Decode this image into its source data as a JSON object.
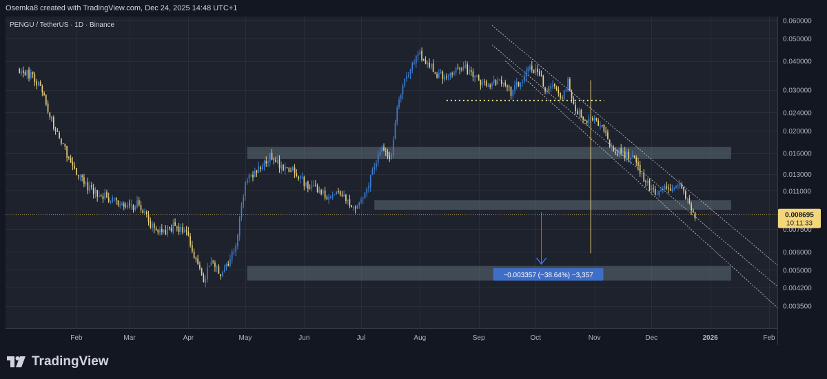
{
  "header": {
    "attribution": "Osemka8 created with TradingView.com, Dec 24, 2025 14:48 UTC+1"
  },
  "footer": {
    "brand": "TradingView",
    "logo_icon": "tradingview-logo-icon"
  },
  "chart_data": {
    "type": "candlestick",
    "title": "PENGU / TetherUS · 1D · Binance",
    "x_axis": {
      "labels": [
        "Feb",
        "Mar",
        "Apr",
        "May",
        "Jun",
        "Jul",
        "Aug",
        "Sep",
        "Oct",
        "Nov",
        "Dec",
        "2026",
        "Feb"
      ]
    },
    "y_axis": {
      "scale": "log",
      "labels": [
        "0.060000",
        "0.050000",
        "0.040000",
        "0.030000",
        "0.024000",
        "0.020000",
        "0.016000",
        "0.013000",
        "0.011000",
        "0.007500",
        "0.006000",
        "0.005000",
        "0.004200",
        "0.003500"
      ]
    },
    "last_price": {
      "value": "0.008695",
      "countdown": "10:11:33"
    },
    "measure_label": "−0.003357 (−38.64%) −3,357",
    "colors": {
      "up": "#3d7fd4",
      "down": "#e8d07a",
      "background": "#1e222d",
      "grid": "#2a2e39",
      "zone": "#5d6b77",
      "text": "#b2b5be",
      "price_tag": "#f5d77b",
      "measure": "#3e6ec8"
    },
    "price_path": [
      [
        "2025-01-02",
        0.037
      ],
      [
        "2025-01-08",
        0.0345
      ],
      [
        "2025-01-14",
        0.03
      ],
      [
        "2025-01-20",
        0.021
      ],
      [
        "2025-01-26",
        0.0165
      ],
      [
        "2025-02-01",
        0.013
      ],
      [
        "2025-02-08",
        0.0112
      ],
      [
        "2025-02-15",
        0.0105
      ],
      [
        "2025-02-22",
        0.0098
      ],
      [
        "2025-03-01",
        0.0092
      ],
      [
        "2025-03-06",
        0.0098
      ],
      [
        "2025-03-12",
        0.0078
      ],
      [
        "2025-03-18",
        0.0072
      ],
      [
        "2025-03-24",
        0.0077
      ],
      [
        "2025-03-31",
        0.0074
      ],
      [
        "2025-04-06",
        0.0051
      ],
      [
        "2025-04-09",
        0.0045
      ],
      [
        "2025-04-13",
        0.0055
      ],
      [
        "2025-04-18",
        0.0049
      ],
      [
        "2025-04-22",
        0.0052
      ],
      [
        "2025-04-26",
        0.0065
      ],
      [
        "2025-05-01",
        0.012
      ],
      [
        "2025-05-05",
        0.0128
      ],
      [
        "2025-05-10",
        0.0145
      ],
      [
        "2025-05-14",
        0.0155
      ],
      [
        "2025-05-20",
        0.014
      ],
      [
        "2025-05-27",
        0.0135
      ],
      [
        "2025-06-01",
        0.012
      ],
      [
        "2025-06-08",
        0.011
      ],
      [
        "2025-06-15",
        0.0102
      ],
      [
        "2025-06-20",
        0.011
      ],
      [
        "2025-06-25",
        0.0096
      ],
      [
        "2025-06-28",
        0.0095
      ],
      [
        "2025-07-03",
        0.0105
      ],
      [
        "2025-07-08",
        0.014
      ],
      [
        "2025-07-12",
        0.0165
      ],
      [
        "2025-07-17",
        0.0155
      ],
      [
        "2025-07-20",
        0.026
      ],
      [
        "2025-07-23",
        0.031
      ],
      [
        "2025-07-27",
        0.038
      ],
      [
        "2025-07-31",
        0.043
      ],
      [
        "2025-08-04",
        0.04
      ],
      [
        "2025-08-10",
        0.035
      ],
      [
        "2025-08-17",
        0.0345
      ],
      [
        "2025-08-24",
        0.038
      ],
      [
        "2025-08-30",
        0.034
      ],
      [
        "2025-09-05",
        0.031
      ],
      [
        "2025-09-12",
        0.033
      ],
      [
        "2025-09-18",
        0.029
      ],
      [
        "2025-09-22",
        0.032
      ],
      [
        "2025-09-28",
        0.0375
      ],
      [
        "2025-10-03",
        0.036
      ],
      [
        "2025-10-06",
        0.03
      ],
      [
        "2025-10-10",
        0.032
      ],
      [
        "2025-10-15",
        0.028
      ],
      [
        "2025-10-18",
        0.033
      ],
      [
        "2025-10-22",
        0.0245
      ],
      [
        "2025-10-28",
        0.022
      ],
      [
        "2025-11-02",
        0.0225
      ],
      [
        "2025-11-06",
        0.02
      ],
      [
        "2025-11-10",
        0.0165
      ],
      [
        "2025-11-16",
        0.016
      ],
      [
        "2025-11-22",
        0.015
      ],
      [
        "2025-11-28",
        0.012
      ],
      [
        "2025-12-03",
        0.0108
      ],
      [
        "2025-12-08",
        0.0118
      ],
      [
        "2025-12-12",
        0.0108
      ],
      [
        "2025-12-16",
        0.0122
      ],
      [
        "2025-12-19",
        0.0105
      ],
      [
        "2025-12-22",
        0.0092
      ],
      [
        "2025-12-24",
        0.0087
      ]
    ],
    "zones": [
      {
        "from": "2025-05-02",
        "to": "2026-01-12",
        "low": 0.0151,
        "high": 0.017
      },
      {
        "from": "2025-07-08",
        "to": "2026-01-12",
        "low": 0.0091,
        "high": 0.01
      },
      {
        "from": "2025-05-02",
        "to": "2026-01-12",
        "low": 0.0045,
        "high": 0.0052
      }
    ],
    "level_line": {
      "from": "2025-08-15",
      "to": "2025-11-06",
      "price": 0.027
    },
    "channel_lines": [
      {
        "from": [
          "2025-09-08",
          0.057
        ],
        "to": [
          "2026-02-06",
          0.0052
        ]
      },
      {
        "from": [
          "2025-09-08",
          0.047
        ],
        "to": [
          "2026-02-06",
          0.0042
        ]
      },
      {
        "from": [
          "2025-09-15",
          0.04
        ],
        "to": [
          "2026-02-06",
          0.0034
        ]
      }
    ],
    "vertical_marker": {
      "date": "2025-10-30",
      "from": 0.033,
      "to": 0.0059
    },
    "measure_arrow": {
      "date": "2025-10-04",
      "from": 0.0089,
      "to": 0.0053
    },
    "grid": true
  }
}
